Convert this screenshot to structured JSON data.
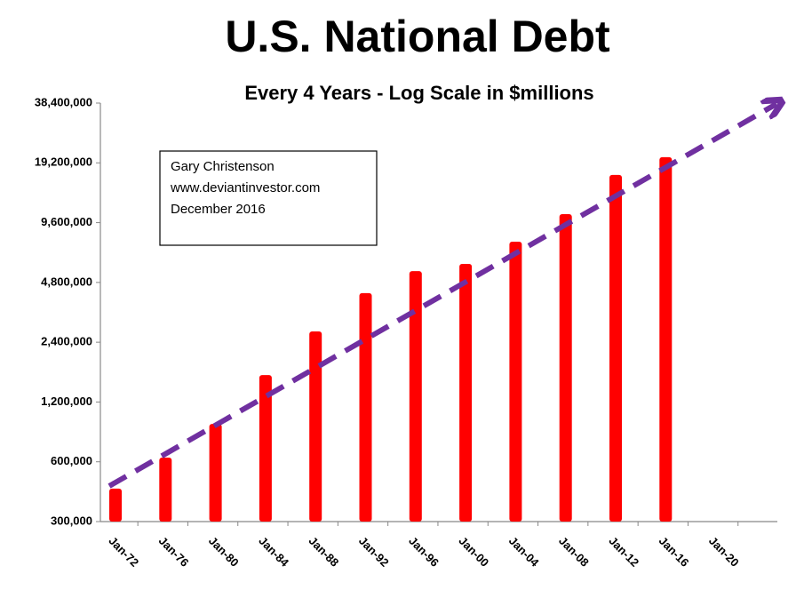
{
  "chart_data": {
    "type": "bar",
    "title": "U.S. National Debt",
    "subtitle": "Every 4 Years - Log Scale in $millions",
    "annotation": [
      "Gary Christenson",
      "www.deviantinvestor.com",
      "December 2016"
    ],
    "categories": [
      "Jan-72",
      "Jan-76",
      "Jan-80",
      "Jan-84",
      "Jan-88",
      "Jan-92",
      "Jan-96",
      "Jan-00",
      "Jan-04",
      "Jan-08",
      "Jan-12",
      "Jan-16",
      "Jan-20"
    ],
    "values": [
      440000,
      630000,
      930000,
      1640000,
      2720000,
      4240000,
      5470000,
      5950000,
      7700000,
      10600000,
      16700000,
      20500000,
      null
    ],
    "color": "#ff0000",
    "yscale": "log",
    "ylim": [
      300000,
      38400000
    ],
    "yticks": [
      {
        "value": 300000,
        "label": "300,000"
      },
      {
        "value": 600000,
        "label": "600,000"
      },
      {
        "value": 1200000,
        "label": "1,200,000"
      },
      {
        "value": 2400000,
        "label": "2,400,000"
      },
      {
        "value": 4800000,
        "label": "4,800,000"
      },
      {
        "value": 9600000,
        "label": "9,600,000"
      },
      {
        "value": 19200000,
        "label": "19,200,000"
      },
      {
        "value": 38400000,
        "label": "38,400,000"
      }
    ]
  }
}
